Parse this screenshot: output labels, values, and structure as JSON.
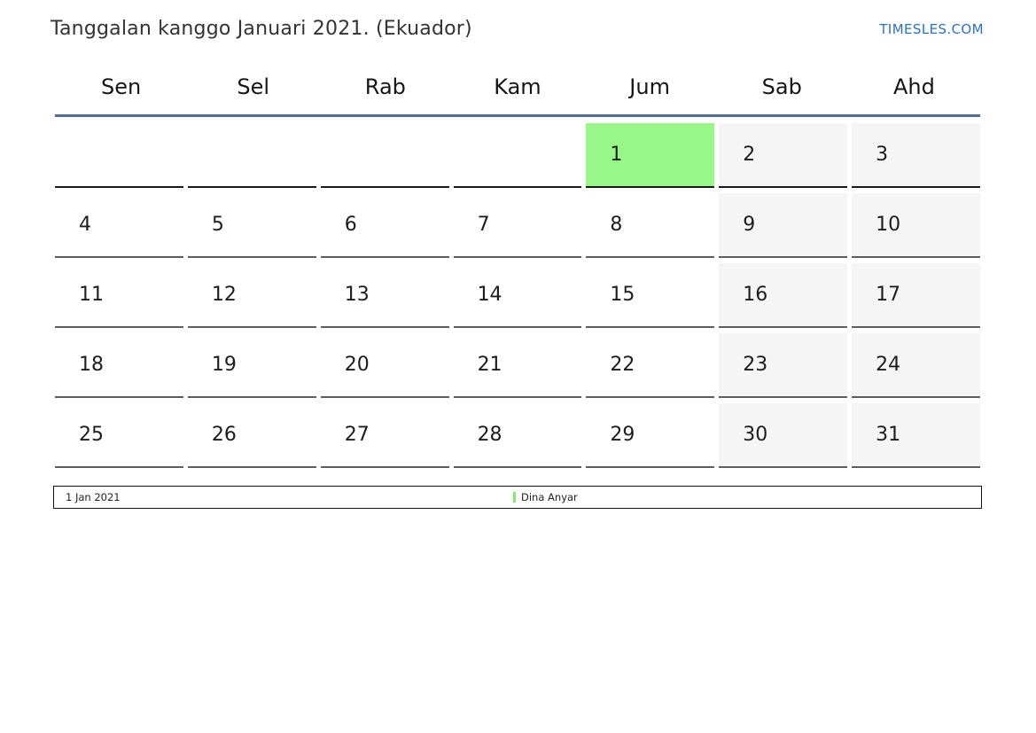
{
  "header": {
    "title": "Tanggalan kanggo Januari 2021. (Ekuador)",
    "brand": "TIMESLES.COM"
  },
  "calendar": {
    "day_headers": [
      "Sen",
      "Sel",
      "Rab",
      "Kam",
      "Jum",
      "Sab",
      "Ahd"
    ],
    "weeks": [
      [
        "",
        "",
        "",
        "",
        "1",
        "2",
        "3"
      ],
      [
        "4",
        "5",
        "6",
        "7",
        "8",
        "9",
        "10"
      ],
      [
        "11",
        "12",
        "13",
        "14",
        "15",
        "16",
        "17"
      ],
      [
        "18",
        "19",
        "20",
        "21",
        "22",
        "23",
        "24"
      ],
      [
        "25",
        "26",
        "27",
        "28",
        "29",
        "30",
        "31"
      ]
    ],
    "weekend_columns": [
      5,
      6
    ],
    "highlight": {
      "row": 0,
      "col": 4,
      "date": "1",
      "label": "Dina Anyar"
    }
  },
  "footer": {
    "date_label": "1 Jan 2021",
    "legend": [
      {
        "label": "Dina Anyar",
        "color": "#7dec6b"
      }
    ]
  },
  "colors": {
    "accent_line": "#4e6e99",
    "brand_blue": "#2d72bf",
    "holiday_bg": "#97f787",
    "weekend_bg": "#f5f5f5"
  }
}
